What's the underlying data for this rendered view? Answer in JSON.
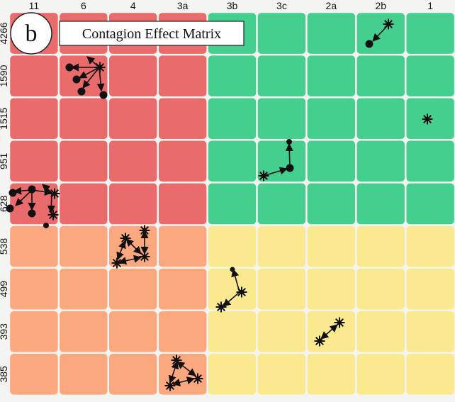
{
  "panel_letter": "b",
  "title": "Contagion Effect Matrix",
  "columns": [
    "11",
    "6",
    "4",
    "3a",
    "3b",
    "3c",
    "2a",
    "2b",
    "1"
  ],
  "rows": [
    "4266",
    "1590",
    "1515",
    "951",
    "628",
    "538",
    "499",
    "393",
    "385"
  ],
  "quadrant_colors": {
    "top_left": "#e96b6b",
    "top_right": "#45cf8e",
    "bottom_left": "#fca87e",
    "bottom_right": "#fbe98f"
  },
  "marker_types": {
    "burst": "asterisk-node",
    "dot": "filled-circle-node"
  }
}
